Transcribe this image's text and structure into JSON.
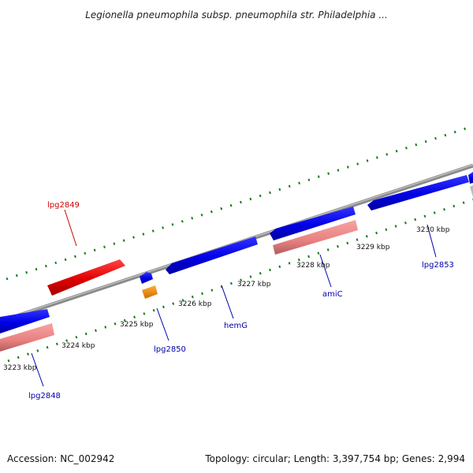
{
  "title": "Legionella pneumophila subsp. pneumophila str. Philadelphia ...",
  "footer": {
    "accession": "Accession: NC_002942",
    "summary": "Topology: circular; Length: 3,397,754 bp; Genes: 2,994"
  },
  "ticks": [
    "3223 kbp",
    "3224 kbp",
    "3225 kbp",
    "3226 kbp",
    "3227 kbp",
    "3228 kbp",
    "3229 kbp",
    "3230 kbp"
  ],
  "gene_labels": [
    "lpg2849",
    "lpg2850",
    "hemG",
    "amiC",
    "lpg2853",
    "lpg2848"
  ],
  "colors": {
    "forward_cds": "#ee1111",
    "reverse_cds": "#1111ee",
    "rna": "#ee8a8a",
    "orange_feature": "#f08a00",
    "backbone": "#8a8a8a",
    "tick_marks": "#1a7a1a",
    "label_red": "#cc0000",
    "label_blue": "#0000aa"
  }
}
